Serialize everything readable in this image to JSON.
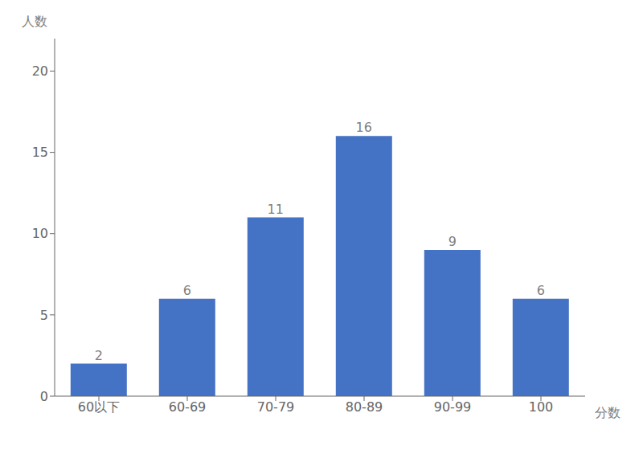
{
  "chart_data": {
    "type": "bar",
    "categories": [
      "60以下",
      "60-69",
      "70-79",
      "80-89",
      "90-99",
      "100"
    ],
    "values": [
      2,
      6,
      11,
      16,
      9,
      6
    ],
    "color": "#4472C4",
    "ylabel": "人数",
    "xlabel": "分数",
    "ylim": [
      0,
      22
    ],
    "yticks": [
      0,
      5,
      10,
      15,
      20
    ],
    "grid": false,
    "data_labels": true
  }
}
